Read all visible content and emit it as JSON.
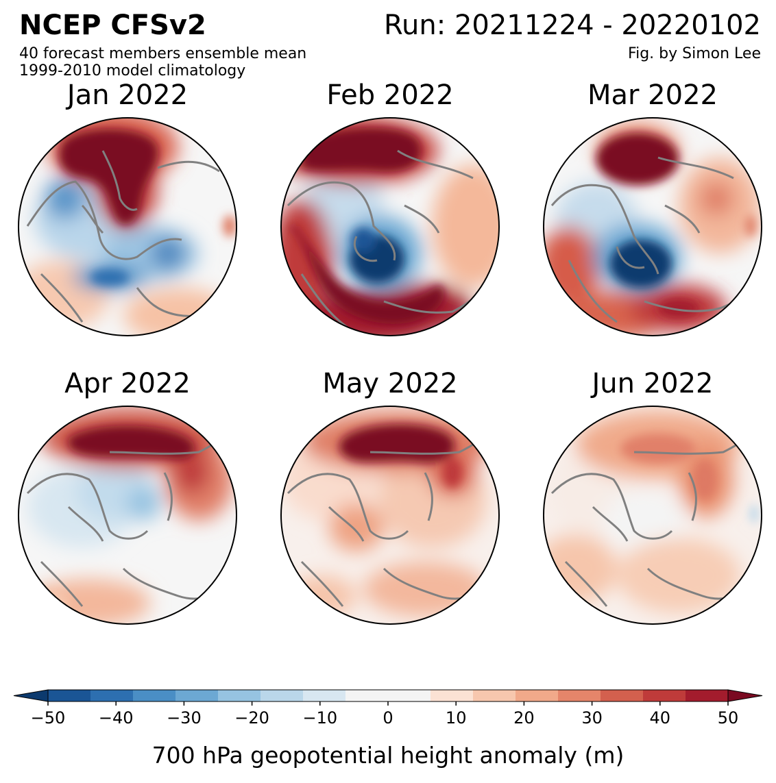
{
  "header": {
    "model": "NCEP CFSv2",
    "run": "Run: 20211224 - 20220102",
    "subtitle_1": "40 forecast members ensemble mean",
    "subtitle_2": "1999-2010 model climatology",
    "credit": "Fig. by Simon Lee"
  },
  "panels": [
    {
      "title": "Jan 2022"
    },
    {
      "title": "Feb 2022"
    },
    {
      "title": "Mar 2022"
    },
    {
      "title": "Apr 2022"
    },
    {
      "title": "May 2022"
    },
    {
      "title": "Jun 2022"
    }
  ],
  "colorbar": {
    "label": "700 hPa geopotential height anomaly (m)",
    "ticks": [
      "−50",
      "−40",
      "−30",
      "−20",
      "−10",
      "0",
      "10",
      "20",
      "30",
      "40",
      "50"
    ],
    "range": [
      -50,
      50
    ],
    "step": 5,
    "colors": [
      "#0c3a6e",
      "#1a5595",
      "#2d6fb0",
      "#4a8ec5",
      "#6ca8d3",
      "#96c3e1",
      "#bad7ea",
      "#d8e7f1",
      "#f4f4f4",
      "#f4f4f4",
      "#fbe2d4",
      "#f7c7ae",
      "#f1a98a",
      "#e5856a",
      "#d3604e",
      "#bf3b3a",
      "#a31c2d",
      "#7a0a21"
    ],
    "extend": "both"
  }
}
